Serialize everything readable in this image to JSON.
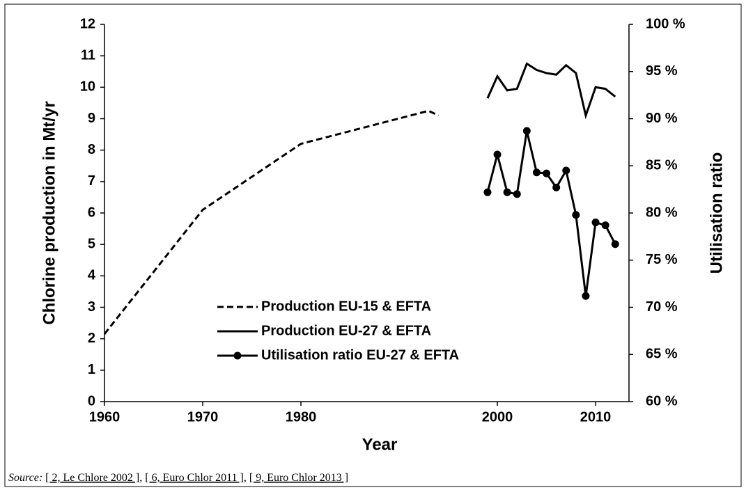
{
  "chart_data": {
    "type": "line",
    "x_label": "Year",
    "y_label": "Chlorine production in Mt/yr",
    "y2_label": "Utilisation ratio",
    "xlim": [
      1960,
      2013.4
    ],
    "xticks": [
      1960,
      1970,
      1980,
      2000,
      2010
    ],
    "ylim": [
      0,
      12
    ],
    "yticks": [
      0,
      1,
      2,
      3,
      4,
      5,
      6,
      7,
      8,
      9,
      10,
      11,
      12
    ],
    "y2lim": [
      60,
      100
    ],
    "y2ticks": [
      {
        "value": 60,
        "label": "60 %"
      },
      {
        "value": 65,
        "label": "65 %"
      },
      {
        "value": 70,
        "label": "70 %"
      },
      {
        "value": 75,
        "label": "75 %"
      },
      {
        "value": 80,
        "label": "80 %"
      },
      {
        "value": 85,
        "label": "85 %"
      },
      {
        "value": 90,
        "label": "90 %"
      },
      {
        "value": 95,
        "label": "95 %"
      },
      {
        "value": 100,
        "label": "100 %"
      }
    ],
    "grid": false,
    "legend": "center",
    "series": [
      {
        "name": "Production EU-15 & EFTA",
        "color": "#000000",
        "dashed": true,
        "x": [
          1960,
          1970,
          1980,
          1993,
          1994
        ],
        "values": [
          2.15,
          6.1,
          8.2,
          9.25,
          9.1
        ]
      },
      {
        "name": "Production EU-27 & EFTA",
        "color": "#000000",
        "x": [
          1999,
          2000,
          2001,
          2002,
          2003,
          2004,
          2005,
          2006,
          2007,
          2008,
          2009,
          2010,
          2011,
          2012
        ],
        "values": [
          9.65,
          10.35,
          9.9,
          9.95,
          10.75,
          10.55,
          10.45,
          10.4,
          10.7,
          10.45,
          9.1,
          10.0,
          9.95,
          9.7
        ]
      },
      {
        "name": "Utilisation ratio EU-27 & EFTA",
        "color": "#000000",
        "axis": "y2",
        "marker": "circle",
        "x": [
          1999,
          2000,
          2001,
          2002,
          2003,
          2004,
          2005,
          2006,
          2007,
          2008,
          2009,
          2010,
          2011,
          2012
        ],
        "values": [
          82.2,
          86.2,
          82.2,
          82.0,
          88.7,
          84.3,
          84.2,
          82.7,
          84.5,
          79.8,
          71.2,
          79.0,
          78.7,
          76.7
        ]
      }
    ]
  },
  "source": {
    "label": "Source:",
    "separator": ",",
    "refs": [
      "[ 2, Le Chlore 2002 ]",
      "[ 6, Euro Chlor 2011 ]",
      "[ 9, Euro Chlor 2013 ]"
    ]
  }
}
